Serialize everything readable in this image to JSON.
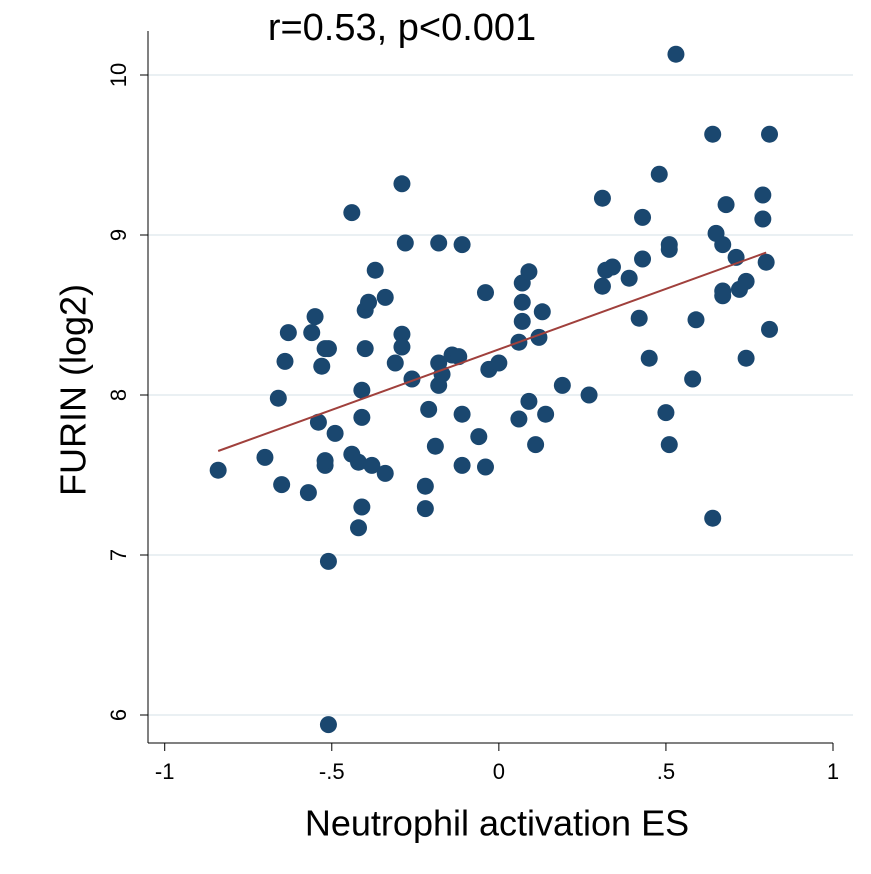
{
  "chart_data": {
    "type": "scatter",
    "title": "r=0.53, p<0.001",
    "x_label": "Neutrophil activation ES",
    "y_label": "FURIN (log2)",
    "xlim": [
      -1.05,
      1.0
    ],
    "ylim": [
      5.825,
      10.275
    ],
    "xticks": [
      -1,
      {
        "value": -0.5,
        "label": "-.5"
      },
      0,
      {
        "value": 0.5,
        "label": ".5"
      },
      1
    ],
    "yticks": [
      6,
      7,
      8,
      9,
      10
    ],
    "grid": true,
    "series": [
      {
        "color": "#1a476f",
        "x": [
          -0.84,
          -0.7,
          -0.65,
          -0.66,
          -0.64,
          -0.63,
          -0.57,
          -0.56,
          -0.55,
          -0.54,
          -0.53,
          -0.52,
          -0.51,
          -0.52,
          -0.52,
          -0.51,
          -0.51,
          -0.49,
          -0.44,
          -0.42,
          -0.44,
          -0.42,
          -0.41,
          -0.41,
          -0.41,
          -0.4,
          -0.4,
          -0.39,
          -0.38,
          -0.37,
          -0.34,
          -0.34,
          -0.31,
          -0.29,
          -0.29,
          -0.29,
          -0.28,
          -0.26,
          -0.22,
          -0.22,
          -0.21,
          -0.19,
          -0.18,
          -0.18,
          -0.18,
          -0.17,
          -0.14,
          -0.12,
          -0.11,
          -0.11,
          -0.11,
          -0.06,
          -0.04,
          -0.04,
          -0.03,
          0.0,
          0.07,
          0.07,
          0.06,
          0.06,
          0.09,
          0.07,
          0.09,
          0.11,
          0.12,
          0.13,
          0.14,
          0.19,
          0.27,
          0.31,
          0.31,
          0.32,
          0.34,
          0.39,
          0.42,
          0.43,
          0.43,
          0.45,
          0.48,
          0.5,
          0.51,
          0.51,
          0.51,
          0.53,
          0.58,
          0.59,
          0.64,
          0.64,
          0.65,
          0.67,
          0.67,
          0.67,
          0.68,
          0.71,
          0.72,
          0.74,
          0.74,
          0.79,
          0.79,
          0.8,
          0.81,
          0.81
        ],
        "values": [
          7.53,
          7.61,
          7.44,
          7.98,
          8.21,
          8.39,
          7.39,
          8.39,
          8.49,
          7.83,
          8.18,
          8.29,
          8.29,
          7.56,
          7.59,
          6.96,
          5.94,
          7.76,
          7.63,
          7.58,
          9.14,
          7.17,
          7.3,
          7.86,
          8.03,
          8.29,
          8.53,
          8.58,
          7.56,
          8.78,
          7.51,
          8.61,
          8.2,
          9.32,
          8.38,
          8.3,
          8.95,
          8.1,
          7.43,
          7.29,
          7.91,
          7.68,
          8.95,
          8.06,
          8.2,
          8.13,
          8.25,
          8.24,
          8.94,
          7.88,
          7.56,
          7.74,
          8.64,
          7.55,
          8.16,
          8.2,
          8.7,
          8.46,
          8.33,
          7.85,
          8.77,
          8.58,
          7.96,
          7.69,
          8.36,
          8.52,
          7.88,
          8.06,
          8.0,
          9.23,
          8.68,
          8.78,
          8.8,
          8.73,
          8.48,
          9.11,
          8.85,
          8.23,
          9.38,
          7.89,
          7.69,
          8.91,
          8.94,
          10.13,
          8.1,
          8.47,
          9.63,
          7.23,
          9.01,
          8.65,
          8.62,
          8.94,
          9.19,
          8.86,
          8.66,
          8.71,
          8.23,
          9.25,
          9.1,
          8.83,
          9.63,
          8.41
        ]
      }
    ],
    "trend_line": {
      "x": [
        -0.84,
        0.8
      ],
      "y": [
        7.65,
        8.89
      ],
      "color": "#a0403c"
    }
  }
}
